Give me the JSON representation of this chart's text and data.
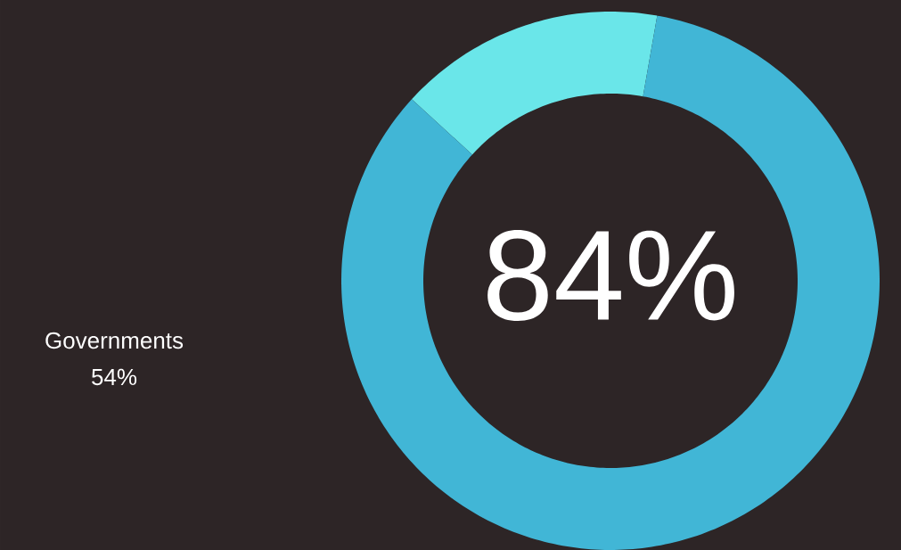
{
  "chart_data": {
    "type": "donut",
    "categories": [
      null,
      null
    ],
    "values": [
      84,
      16
    ],
    "colors": [
      "#41b6d6",
      "#6ae6e9"
    ],
    "value_labels": [
      "84%",
      null
    ],
    "annotations": [
      "Governments",
      "54%"
    ]
  }
}
